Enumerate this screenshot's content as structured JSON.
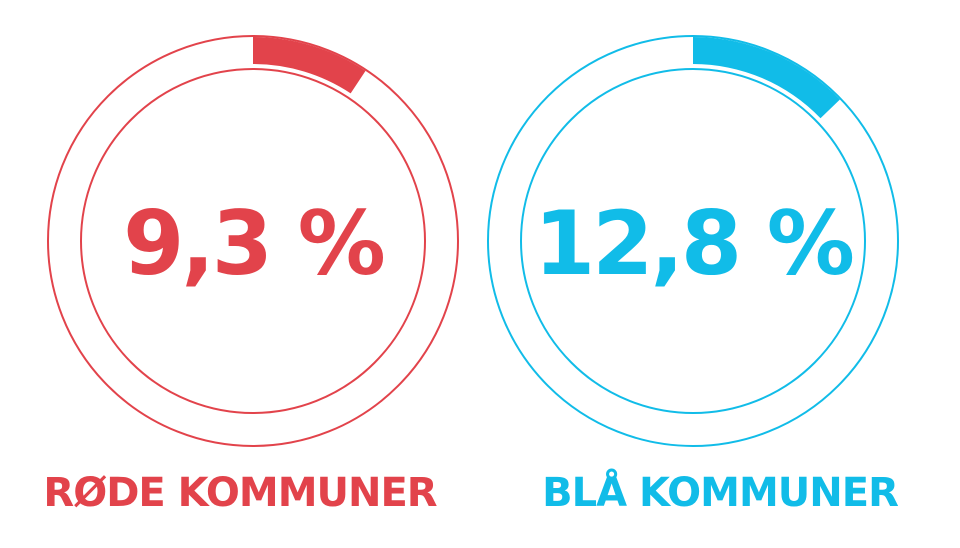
{
  "chart_data": [
    {
      "type": "pie",
      "value": 9.3,
      "value_label": "9,3 %",
      "category": "RØDE KOMMUNER",
      "color": "#e2434b"
    },
    {
      "type": "pie",
      "value": 12.8,
      "value_label": "12,8 %",
      "category": "BLÅ KOMMUNER",
      "color": "#11bce8"
    }
  ]
}
